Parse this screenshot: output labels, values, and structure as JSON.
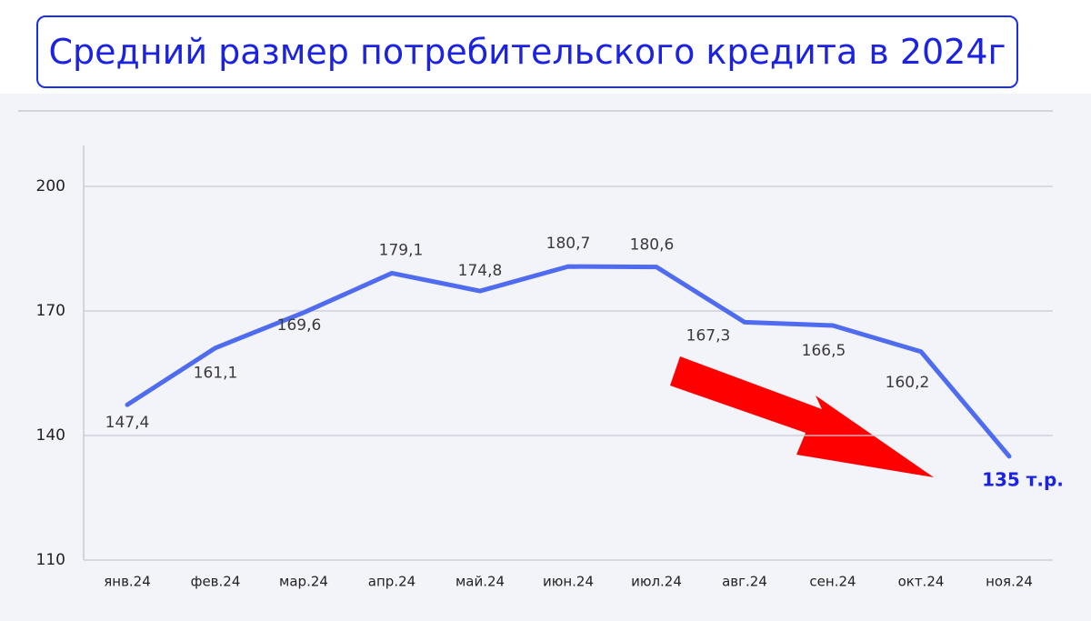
{
  "chart_data": {
    "type": "line",
    "title": "Средний размер потребительского кредита в 2024г",
    "categories": [
      "янв.24",
      "фев.24",
      "мар.24",
      "апр.24",
      "май.24",
      "июн.24",
      "июл.24",
      "авг.24",
      "сен.24",
      "окт.24",
      "ноя.24"
    ],
    "values": [
      147.4,
      161.1,
      169.6,
      179.1,
      174.8,
      180.7,
      180.6,
      167.3,
      166.5,
      160.2,
      135
    ],
    "value_labels": [
      "147,4",
      "161,1",
      "169,6",
      "179,1",
      "174,8",
      "180,7",
      "180,6",
      "167,3",
      "166,5",
      "160,2",
      "135 т.р."
    ],
    "color": "#4f6cf0",
    "ylim": [
      110,
      210
    ],
    "yticks": [
      110,
      140,
      170,
      200
    ],
    "grid": true
  }
}
